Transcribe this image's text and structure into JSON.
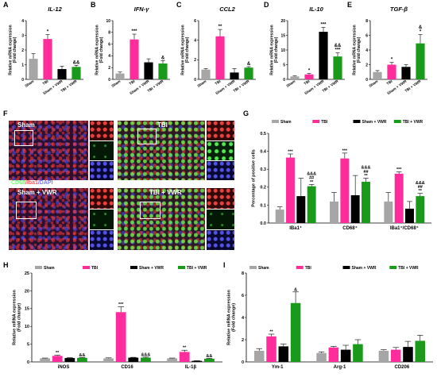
{
  "colors": {
    "sham": "#a6a6a6",
    "tbi": "#ff2d9b",
    "sham_vwr": "#000000",
    "tbi_vwr": "#1a9a1a"
  },
  "panel_letters": {
    "a": "A",
    "b": "B",
    "c": "C",
    "d": "D",
    "e": "E",
    "f": "F",
    "g": "G",
    "h": "H",
    "i": "I"
  },
  "micro": {
    "sham": "Sham",
    "tbi": "TBI",
    "sham_vwr": "Sham + VWR",
    "tbi_vwr": "TBI + VWR",
    "ch_cd68": "CD68",
    "ch_iba1": "/Iba1",
    "ch_dapi": "/DAPI"
  },
  "chart_data": [
    {
      "id": "A",
      "type": "bar",
      "title": "IL-12",
      "ylabel": "Relative mRNA expression (Fold change)",
      "categories": [
        "Sham",
        "TBI",
        "Sham + VWR",
        "TBI + VWR"
      ],
      "values": [
        1.4,
        2.75,
        0.7,
        0.85
      ],
      "errors": [
        0.35,
        0.3,
        0.2,
        0.1
      ],
      "annotations": [
        "",
        "*",
        "",
        "&&"
      ],
      "ylim": [
        0,
        4
      ],
      "yticks": [
        0,
        1,
        2,
        3,
        4
      ]
    },
    {
      "id": "B",
      "type": "bar",
      "title": "IFN-γ",
      "ylabel": "Relative mRNA expression (Fold change)",
      "categories": [
        "Sham",
        "TBI",
        "Sham + VWR",
        "TBI + VWR"
      ],
      "values": [
        1.0,
        6.8,
        2.9,
        2.7
      ],
      "errors": [
        0.25,
        0.9,
        0.6,
        0.5
      ],
      "annotations": [
        "",
        "***",
        "",
        "&"
      ],
      "ylim": [
        0,
        10
      ],
      "yticks": [
        0,
        2,
        4,
        6,
        8,
        10
      ]
    },
    {
      "id": "C",
      "type": "bar",
      "title": "CCL2",
      "ylabel": "Relative mRNA expression (Fold change)",
      "categories": [
        "Sham",
        "TBI",
        "Sham + VWR",
        "TBI + VWR"
      ],
      "values": [
        1.0,
        4.4,
        0.7,
        1.2
      ],
      "errors": [
        0.1,
        0.7,
        0.4,
        0.1
      ],
      "annotations": [
        "",
        "**",
        "",
        "&"
      ],
      "ylim": [
        0,
        6
      ],
      "yticks": [
        0,
        2,
        4,
        6
      ]
    },
    {
      "id": "D",
      "type": "bar",
      "title": "IL-10",
      "ylabel": "Relative mRNA expression (Fold change)",
      "categories": [
        "Sham",
        "TBI",
        "Sham + VWR",
        "TBI + VWR"
      ],
      "values": [
        1.0,
        1.7,
        16.2,
        7.8
      ],
      "errors": [
        0.2,
        0.3,
        1.5,
        1.2
      ],
      "annotations": [
        "",
        "*",
        "***",
        "&&\n***"
      ],
      "ylim": [
        0,
        20
      ],
      "yticks": [
        0,
        5,
        10,
        15,
        20
      ]
    },
    {
      "id": "E",
      "type": "bar",
      "title": "TGF-β",
      "ylabel": "Relative mRNA expression (Fold change)",
      "categories": [
        "Sham",
        "TBI",
        "Sham + VWR",
        "TBI + VWR"
      ],
      "values": [
        1.0,
        2.0,
        1.7,
        4.9
      ],
      "errors": [
        0.2,
        0.3,
        0.3,
        1.2
      ],
      "annotations": [
        "",
        "*",
        "",
        "&\n*"
      ],
      "ylim": [
        0,
        8
      ],
      "yticks": [
        0,
        2,
        4,
        6,
        8
      ]
    },
    {
      "id": "G",
      "type": "bar",
      "ylabel": "Percentage of positive cells",
      "legend": [
        "Sham",
        "TBI",
        "Sham + VWR",
        "TBI + VWR"
      ],
      "legend_position": "top",
      "categories": [
        "IBa1⁺",
        "CD68⁺",
        "IBa1⁺/CD68⁺"
      ],
      "series": [
        {
          "name": "Sham",
          "values": [
            0.075,
            0.12,
            0.12
          ],
          "errors": [
            0.015,
            0.05,
            0.05
          ]
        },
        {
          "name": "TBI",
          "values": [
            0.365,
            0.36,
            0.275
          ],
          "errors": [
            0.02,
            0.03,
            0.01
          ]
        },
        {
          "name": "Sham + VWR",
          "values": [
            0.15,
            0.155,
            0.08
          ],
          "errors": [
            0.1,
            0.11,
            0.04
          ]
        },
        {
          "name": "TBI + VWR",
          "values": [
            0.205,
            0.23,
            0.15
          ],
          "errors": [
            0.01,
            0.02,
            0.015
          ]
        }
      ],
      "annotations": [
        [
          "",
          "***",
          "",
          "&&&\n##\n**"
        ],
        [
          "",
          "***",
          "",
          "&&&\n##\n**"
        ],
        [
          "",
          "***",
          "",
          "&&&\n##\n**"
        ]
      ],
      "ylim": [
        0,
        0.5
      ],
      "yticks": [
        0.0,
        0.1,
        0.2,
        0.3,
        0.4,
        0.5
      ]
    },
    {
      "id": "H",
      "type": "bar",
      "ylabel": "Relative mRNA expression (Fold change)",
      "legend": [
        "Sham",
        "TBI",
        "Sham + VWR",
        "TBI + VWR"
      ],
      "legend_position": "top",
      "categories": [
        "iNOS",
        "CD16",
        "IL-1β"
      ],
      "series": [
        {
          "name": "Sham",
          "values": [
            1.0,
            1.0,
            1.0
          ],
          "errors": [
            0.1,
            0.15,
            0.1
          ]
        },
        {
          "name": "TBI",
          "values": [
            1.7,
            14.0,
            2.8
          ],
          "errors": [
            0.2,
            1.5,
            0.5
          ]
        },
        {
          "name": "Sham + VWR",
          "values": [
            1.1,
            1.2,
            0.3
          ],
          "errors": [
            0.1,
            0.1,
            0.05
          ]
        },
        {
          "name": "TBI + VWR",
          "values": [
            1.15,
            1.2,
            0.9
          ],
          "errors": [
            0.1,
            0.15,
            0.1
          ]
        }
      ],
      "annotations": [
        [
          "",
          "**",
          "",
          "&&"
        ],
        [
          "",
          "***",
          "",
          "&&&"
        ],
        [
          "",
          "**",
          "",
          "&&"
        ]
      ],
      "ylim": [
        0,
        25
      ],
      "yticks": [
        0,
        5,
        10,
        15,
        20,
        25
      ]
    },
    {
      "id": "I",
      "type": "bar",
      "ylabel": "Relative mRNA expression (Fold change)",
      "legend": [
        "Sham",
        "TBI",
        "Sham + VWR",
        "TBI + VWR"
      ],
      "legend_position": "top",
      "categories": [
        "Ym-1",
        "Arg-1",
        "CD206"
      ],
      "series": [
        {
          "name": "Sham",
          "values": [
            1.0,
            0.8,
            1.0
          ],
          "errors": [
            0.2,
            0.1,
            0.1
          ]
        },
        {
          "name": "TBI",
          "values": [
            2.3,
            1.3,
            1.1
          ],
          "errors": [
            0.2,
            0.1,
            0.2
          ]
        },
        {
          "name": "Sham + VWR",
          "values": [
            1.4,
            1.1,
            1.35
          ],
          "errors": [
            0.2,
            0.4,
            0.5
          ]
        },
        {
          "name": "TBI + VWR",
          "values": [
            5.3,
            1.6,
            1.9
          ],
          "errors": [
            1.0,
            0.4,
            0.5
          ]
        }
      ],
      "annotations": [
        [
          "",
          "**",
          "",
          "&"
        ],
        [
          "",
          "",
          "",
          ""
        ],
        [
          "",
          "",
          "",
          ""
        ]
      ],
      "ylim": [
        0,
        8
      ],
      "yticks": [
        0,
        2,
        4,
        6,
        8
      ]
    }
  ]
}
